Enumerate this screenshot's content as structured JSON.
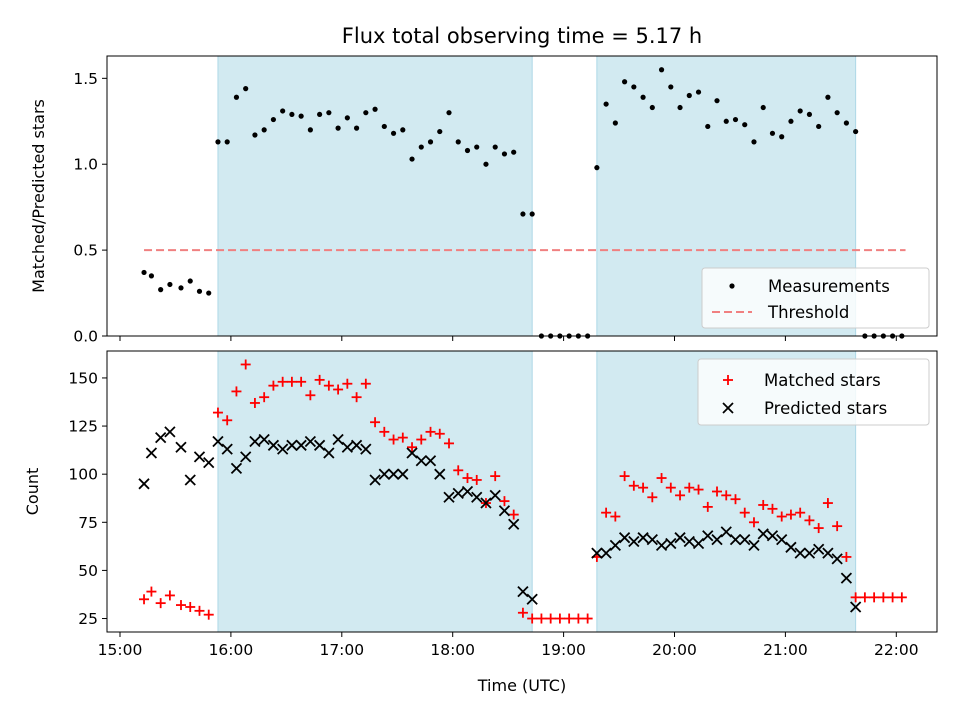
{
  "colors": {
    "band": "#add8e6",
    "measurement": "#000000",
    "threshold": "#f08080",
    "matched": "#ff0000",
    "predicted": "#000000"
  },
  "chart_data": [
    {
      "type": "scatter",
      "title": "Flux total observing time = 5.17 h",
      "xlabel": "",
      "ylabel": "Matched/Predicted stars",
      "ylim": [
        0,
        1.63
      ],
      "yticks": [
        "0.0",
        "0.5",
        "1.0",
        "1.5"
      ],
      "shaded_intervals": [
        [
          "15:53",
          "18:43"
        ],
        [
          "19:18",
          "21:38"
        ]
      ],
      "legend_position": "lower-right",
      "threshold": {
        "name": "Threshold",
        "x": [
          "15:13",
          "22:05"
        ],
        "y": 0.5
      },
      "series": [
        {
          "name": "Measurements",
          "x": [
            "15:13",
            "15:17",
            "15:22",
            "15:27",
            "15:33",
            "15:38",
            "15:43",
            "15:48",
            "15:53",
            "15:58",
            "16:03",
            "16:08",
            "16:13",
            "16:18",
            "16:23",
            "16:28",
            "16:33",
            "16:38",
            "16:43",
            "16:48",
            "16:53",
            "16:58",
            "17:03",
            "17:08",
            "17:13",
            "17:18",
            "17:23",
            "17:28",
            "17:33",
            "17:38",
            "17:43",
            "17:48",
            "17:53",
            "17:58",
            "18:03",
            "18:08",
            "18:13",
            "18:18",
            "18:23",
            "18:28",
            "18:33",
            "18:38",
            "18:43",
            "18:48",
            "18:53",
            "18:58",
            "19:03",
            "19:08",
            "19:13",
            "19:18",
            "19:23",
            "19:28",
            "19:33",
            "19:38",
            "19:43",
            "19:48",
            "19:53",
            "19:58",
            "20:03",
            "20:08",
            "20:13",
            "20:18",
            "20:23",
            "20:28",
            "20:33",
            "20:38",
            "20:43",
            "20:48",
            "20:53",
            "20:58",
            "21:03",
            "21:08",
            "21:13",
            "21:18",
            "21:23",
            "21:28",
            "21:33",
            "21:38",
            "21:43",
            "21:48",
            "21:53",
            "21:58",
            "22:03"
          ],
          "y": [
            0.37,
            0.35,
            0.27,
            0.3,
            0.28,
            0.32,
            0.26,
            0.25,
            1.13,
            1.13,
            1.39,
            1.44,
            1.17,
            1.2,
            1.26,
            1.31,
            1.29,
            1.28,
            1.2,
            1.29,
            1.3,
            1.21,
            1.27,
            1.21,
            1.3,
            1.32,
            1.22,
            1.18,
            1.2,
            1.03,
            1.1,
            1.13,
            1.19,
            1.3,
            1.13,
            1.08,
            1.1,
            1.0,
            1.1,
            1.06,
            1.07,
            0.71,
            0.71,
            0.0,
            0.0,
            0.0,
            0.0,
            0.0,
            0.0,
            0.98,
            1.35,
            1.24,
            1.48,
            1.45,
            1.39,
            1.33,
            1.55,
            1.45,
            1.33,
            1.4,
            1.42,
            1.22,
            1.37,
            1.25,
            1.26,
            1.23,
            1.13,
            1.33,
            1.18,
            1.16,
            1.25,
            1.31,
            1.29,
            1.22,
            1.39,
            1.3,
            1.24,
            1.19,
            0.0,
            0.0,
            0.0,
            0.0,
            0.0
          ]
        }
      ]
    },
    {
      "type": "scatter",
      "title": "",
      "xlabel": "Time (UTC)",
      "ylabel": "Count",
      "ylim": [
        18,
        164
      ],
      "yticks": [
        "25",
        "50",
        "75",
        "100",
        "125",
        "150"
      ],
      "xticks": [
        "15:00",
        "16:00",
        "17:00",
        "18:00",
        "19:00",
        "20:00",
        "21:00",
        "22:00"
      ],
      "shaded_intervals": [
        [
          "15:53",
          "18:43"
        ],
        [
          "19:18",
          "21:38"
        ]
      ],
      "legend_position": "upper-right",
      "series": [
        {
          "name": "Matched stars",
          "x": [
            "15:13",
            "15:17",
            "15:22",
            "15:27",
            "15:33",
            "15:38",
            "15:43",
            "15:48",
            "15:53",
            "15:58",
            "16:03",
            "16:08",
            "16:13",
            "16:18",
            "16:23",
            "16:28",
            "16:33",
            "16:38",
            "16:43",
            "16:48",
            "16:53",
            "16:58",
            "17:03",
            "17:08",
            "17:13",
            "17:18",
            "17:23",
            "17:28",
            "17:33",
            "17:38",
            "17:43",
            "17:48",
            "17:53",
            "17:58",
            "18:03",
            "18:08",
            "18:13",
            "18:18",
            "18:23",
            "18:28",
            "18:33",
            "18:38",
            "18:43",
            "18:48",
            "18:53",
            "18:58",
            "19:03",
            "19:08",
            "19:13",
            "19:18",
            "19:23",
            "19:28",
            "19:33",
            "19:38",
            "19:43",
            "19:48",
            "19:53",
            "19:58",
            "20:03",
            "20:08",
            "20:13",
            "20:18",
            "20:23",
            "20:28",
            "20:33",
            "20:38",
            "20:43",
            "20:48",
            "20:53",
            "20:58",
            "21:03",
            "21:08",
            "21:13",
            "21:18",
            "21:23",
            "21:28",
            "21:33",
            "21:38",
            "21:43",
            "21:48",
            "21:53",
            "21:58",
            "22:03"
          ],
          "y": [
            35,
            39,
            33,
            37,
            32,
            31,
            29,
            27,
            132,
            128,
            143,
            157,
            137,
            140,
            146,
            148,
            148,
            148,
            141,
            149,
            146,
            144,
            147,
            140,
            147,
            127,
            122,
            118,
            119,
            114,
            118,
            122,
            121,
            116,
            102,
            98,
            97,
            85,
            99,
            86,
            79,
            28,
            25,
            25,
            25,
            25,
            25,
            25,
            25,
            57,
            80,
            78,
            99,
            94,
            93,
            88,
            98,
            93,
            89,
            93,
            92,
            83,
            91,
            89,
            87,
            80,
            75,
            84,
            82,
            78,
            79,
            80,
            76,
            72,
            85,
            73,
            57,
            36,
            36,
            36,
            36,
            36,
            36
          ]
        },
        {
          "name": "Predicted stars",
          "x": [
            "15:13",
            "15:17",
            "15:22",
            "15:27",
            "15:33",
            "15:38",
            "15:43",
            "15:48",
            "15:53",
            "15:58",
            "16:03",
            "16:08",
            "16:13",
            "16:18",
            "16:23",
            "16:28",
            "16:33",
            "16:38",
            "16:43",
            "16:48",
            "16:53",
            "16:58",
            "17:03",
            "17:08",
            "17:13",
            "17:18",
            "17:23",
            "17:28",
            "17:33",
            "17:38",
            "17:43",
            "17:48",
            "17:53",
            "17:58",
            "18:03",
            "18:08",
            "18:13",
            "18:18",
            "18:23",
            "18:28",
            "18:33",
            "18:38",
            "18:43",
            "19:18",
            "19:23",
            "19:28",
            "19:33",
            "19:38",
            "19:43",
            "19:48",
            "19:53",
            "19:58",
            "20:03",
            "20:08",
            "20:13",
            "20:18",
            "20:23",
            "20:28",
            "20:33",
            "20:38",
            "20:43",
            "20:48",
            "20:53",
            "20:58",
            "21:03",
            "21:08",
            "21:13",
            "21:18",
            "21:23",
            "21:28",
            "21:33",
            "21:38"
          ],
          "y": [
            95,
            111,
            119,
            122,
            114,
            97,
            109,
            106,
            117,
            113,
            103,
            109,
            117,
            118,
            115,
            113,
            115,
            115,
            117,
            115,
            111,
            118,
            114,
            115,
            113,
            97,
            100,
            100,
            100,
            111,
            107,
            107,
            100,
            88,
            90,
            91,
            88,
            85,
            89,
            81,
            74,
            39,
            35,
            59,
            59,
            63,
            67,
            65,
            67,
            66,
            63,
            64,
            67,
            65,
            64,
            68,
            66,
            70,
            66,
            66,
            63,
            69,
            68,
            66,
            62,
            59,
            59,
            61,
            59,
            56,
            46,
            31
          ]
        }
      ]
    }
  ]
}
